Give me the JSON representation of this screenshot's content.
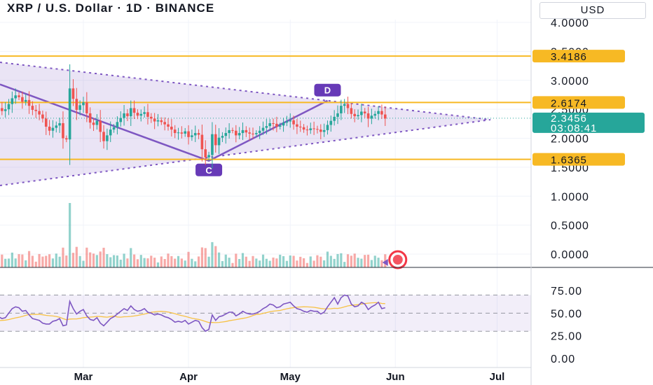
{
  "header": {
    "title": "XRP / U.S. Dollar · 1D · BINANCE",
    "currency_button": "USD"
  },
  "colors": {
    "up": "#26a69a",
    "down": "#ef5350",
    "pattern": "#7e57c2",
    "level": "#f7b924",
    "rsi": "#7e57c2",
    "rsi_ma": "#f7c245",
    "price_badge": "#26a69a"
  },
  "price_scale": {
    "ticks": [
      "4.0000",
      "3.5000",
      "3.0000",
      "2.5000",
      "2.0000",
      "1.5000",
      "1.0000",
      "0.5000",
      "0.0000"
    ],
    "tick_values": [
      4.0,
      3.5,
      3.0,
      2.5,
      2.0,
      1.5,
      1.0,
      0.5,
      0.0
    ]
  },
  "rsi_scale": {
    "ticks": [
      "75.00",
      "50.00",
      "25.00",
      "0.00"
    ],
    "tick_values": [
      75,
      50,
      25,
      0
    ],
    "band": [
      30,
      70
    ]
  },
  "time_axis": {
    "labels": [
      "Mar",
      "Apr",
      "May",
      "Jun",
      "Jul"
    ]
  },
  "levels": [
    {
      "label": "3.4186",
      "value": 3.4186
    },
    {
      "label": "2.6174",
      "value": 2.6174
    },
    {
      "label": "1.6365",
      "value": 1.6365
    }
  ],
  "last_price": {
    "value": "2.3456",
    "countdown": "03:08:41",
    "price": 2.3456
  },
  "pattern_points": [
    {
      "label": "C",
      "date": "2025-04-07",
      "price": 1.61
    },
    {
      "label": "D",
      "date": "2025-05-12",
      "price": 2.65
    }
  ],
  "chart_data": {
    "type": "candlestick",
    "symbol": "XRPUSD",
    "interval": "1D",
    "exchange": "BINANCE",
    "x_range": [
      "2025-01-27",
      "2025-07-10"
    ],
    "ylim": [
      0,
      4.2
    ],
    "closes": [
      2.72,
      2.55,
      2.42,
      2.33,
      2.47,
      2.52,
      2.44,
      2.6,
      2.52,
      2.47,
      2.5,
      2.59,
      2.69,
      2.74,
      2.71,
      2.63,
      2.66,
      2.56,
      2.49,
      2.47,
      2.41,
      2.34,
      2.2,
      2.13,
      2.18,
      2.22,
      2.26,
      2.0,
      1.98,
      2.86,
      2.68,
      2.49,
      2.57,
      2.62,
      2.43,
      2.27,
      2.23,
      2.3,
      2.11,
      1.95,
      2.05,
      2.15,
      2.19,
      2.28,
      2.35,
      2.43,
      2.38,
      2.52,
      2.44,
      2.39,
      2.42,
      2.45,
      2.37,
      2.34,
      2.29,
      2.31,
      2.28,
      2.24,
      2.2,
      2.15,
      2.09,
      2.1,
      2.08,
      2.12,
      2.02,
      2.05,
      2.09,
      2.06,
      1.81,
      1.67,
      1.71,
      2.07,
      1.88,
      2.01,
      2.04,
      2.09,
      2.14,
      2.13,
      2.05,
      2.09,
      2.14,
      2.1,
      2.08,
      2.07,
      2.09,
      2.13,
      2.18,
      2.21,
      2.26,
      2.25,
      2.2,
      2.22,
      2.27,
      2.29,
      2.31,
      2.24,
      2.2,
      2.19,
      2.15,
      2.14,
      2.17,
      2.16,
      2.15,
      2.11,
      2.14,
      2.23,
      2.3,
      2.37,
      2.43,
      2.56,
      2.59,
      2.52,
      2.42,
      2.38,
      2.4,
      2.46,
      2.43,
      2.34,
      2.39,
      2.42,
      2.47,
      2.41,
      2.34
    ],
    "volume_max_index": 29,
    "rsi_length": 14,
    "rsi_values": [
      46,
      40,
      36,
      35,
      42,
      44,
      40,
      47,
      46,
      44,
      45,
      50,
      55,
      57,
      56,
      52,
      53,
      48,
      44,
      43,
      42,
      39,
      38,
      38,
      41,
      42,
      44,
      36,
      37,
      63,
      55,
      49,
      52,
      54,
      47,
      43,
      42,
      45,
      39,
      36,
      40,
      44,
      46,
      49,
      52,
      55,
      53,
      58,
      54,
      52,
      53,
      55,
      51,
      50,
      48,
      49,
      48,
      46,
      45,
      43,
      40,
      41,
      40,
      42,
      38,
      40,
      42,
      41,
      34,
      30,
      32,
      48,
      42,
      46,
      47,
      49,
      51,
      51,
      47,
      49,
      52,
      50,
      49,
      49,
      50,
      52,
      55,
      57,
      60,
      59,
      56,
      57,
      60,
      61,
      62,
      58,
      55,
      54,
      52,
      51,
      53,
      52,
      52,
      49,
      51,
      57,
      62,
      67,
      60,
      67,
      70,
      69,
      60,
      57,
      58,
      62,
      60,
      54,
      57,
      59,
      62,
      55,
      56
    ],
    "xlabel": "",
    "ylabel": ""
  }
}
